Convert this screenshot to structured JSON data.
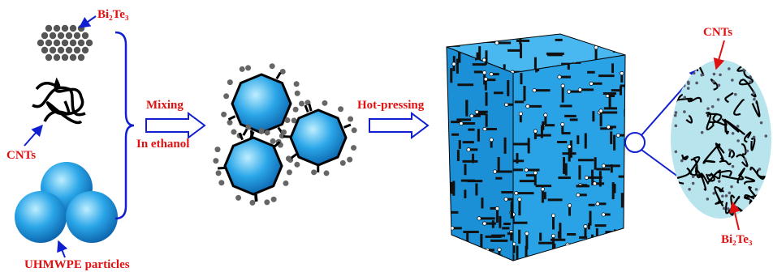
{
  "left": {
    "bi2te3": "Bi₂Te₃",
    "cnts": "CNTs",
    "particles": "UHMWPE particles"
  },
  "steps": {
    "mixing": "Mixing",
    "solvent": "In ethanol",
    "hot_pressing": "Hot-pressing"
  },
  "inset": {
    "cnts": "CNTs",
    "bi2te3": "Bi₂Te₃"
  }
}
